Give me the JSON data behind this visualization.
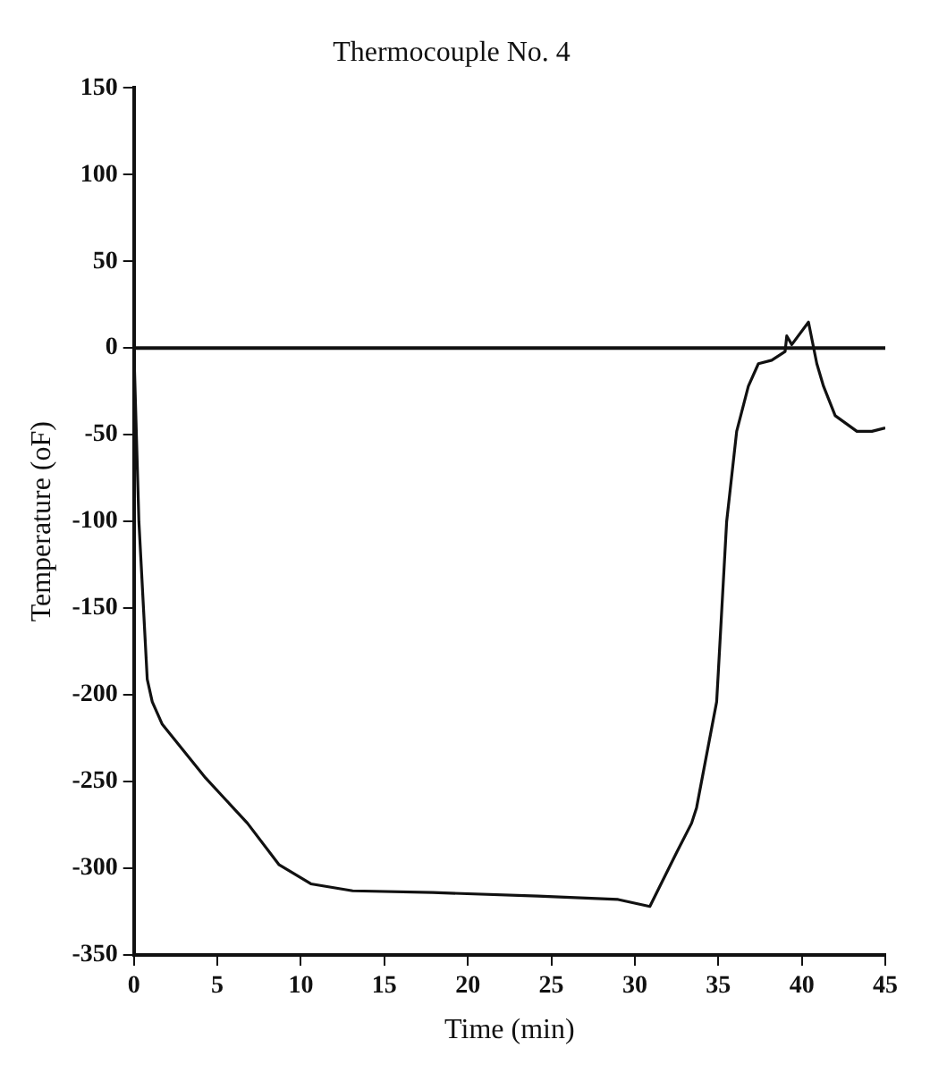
{
  "chart_data": {
    "type": "line",
    "title": "Thermocouple No. 4",
    "xlabel": "Time (min)",
    "ylabel": "Temperature (oF)",
    "x": [
      0,
      0.3,
      0.8,
      1.1,
      1.7,
      4.3,
      6.8,
      8.7,
      10.6,
      13.1,
      17.9,
      24.2,
      29,
      30.9,
      32.5,
      33.4,
      33.7,
      34.9,
      35,
      35.5,
      36.1,
      36.8,
      37.4,
      38.2,
      39,
      39.1,
      39.4,
      40.4,
      40.9,
      41.3,
      42,
      43.3,
      44.2,
      45
    ],
    "series": [
      {
        "color": "#111111",
        "values": [
          0,
          -100,
          -191,
          -204,
          -217,
          -248,
          -274,
          -298,
          -309,
          -313,
          -314,
          -316,
          -318,
          -322,
          -291,
          -274,
          -265,
          -204,
          -187,
          -100,
          -48,
          -22,
          -9,
          -7,
          -2,
          7,
          2,
          15,
          -9,
          -22,
          -39,
          -48,
          -48,
          -46
        ]
      }
    ],
    "xlim": [
      0,
      45
    ],
    "xticks": [
      0,
      5,
      10,
      15,
      20,
      25,
      30,
      35,
      40,
      45
    ],
    "ylim": [
      -350,
      150
    ],
    "yticks": [
      -350,
      -300,
      -250,
      -200,
      -150,
      -100,
      -50,
      0,
      50,
      100,
      150
    ],
    "ref_lines": [
      {
        "axis": "y",
        "value": 0,
        "color": "#111111"
      }
    ],
    "grid": false,
    "legend": false,
    "marker": "none",
    "line_style": "solid"
  }
}
